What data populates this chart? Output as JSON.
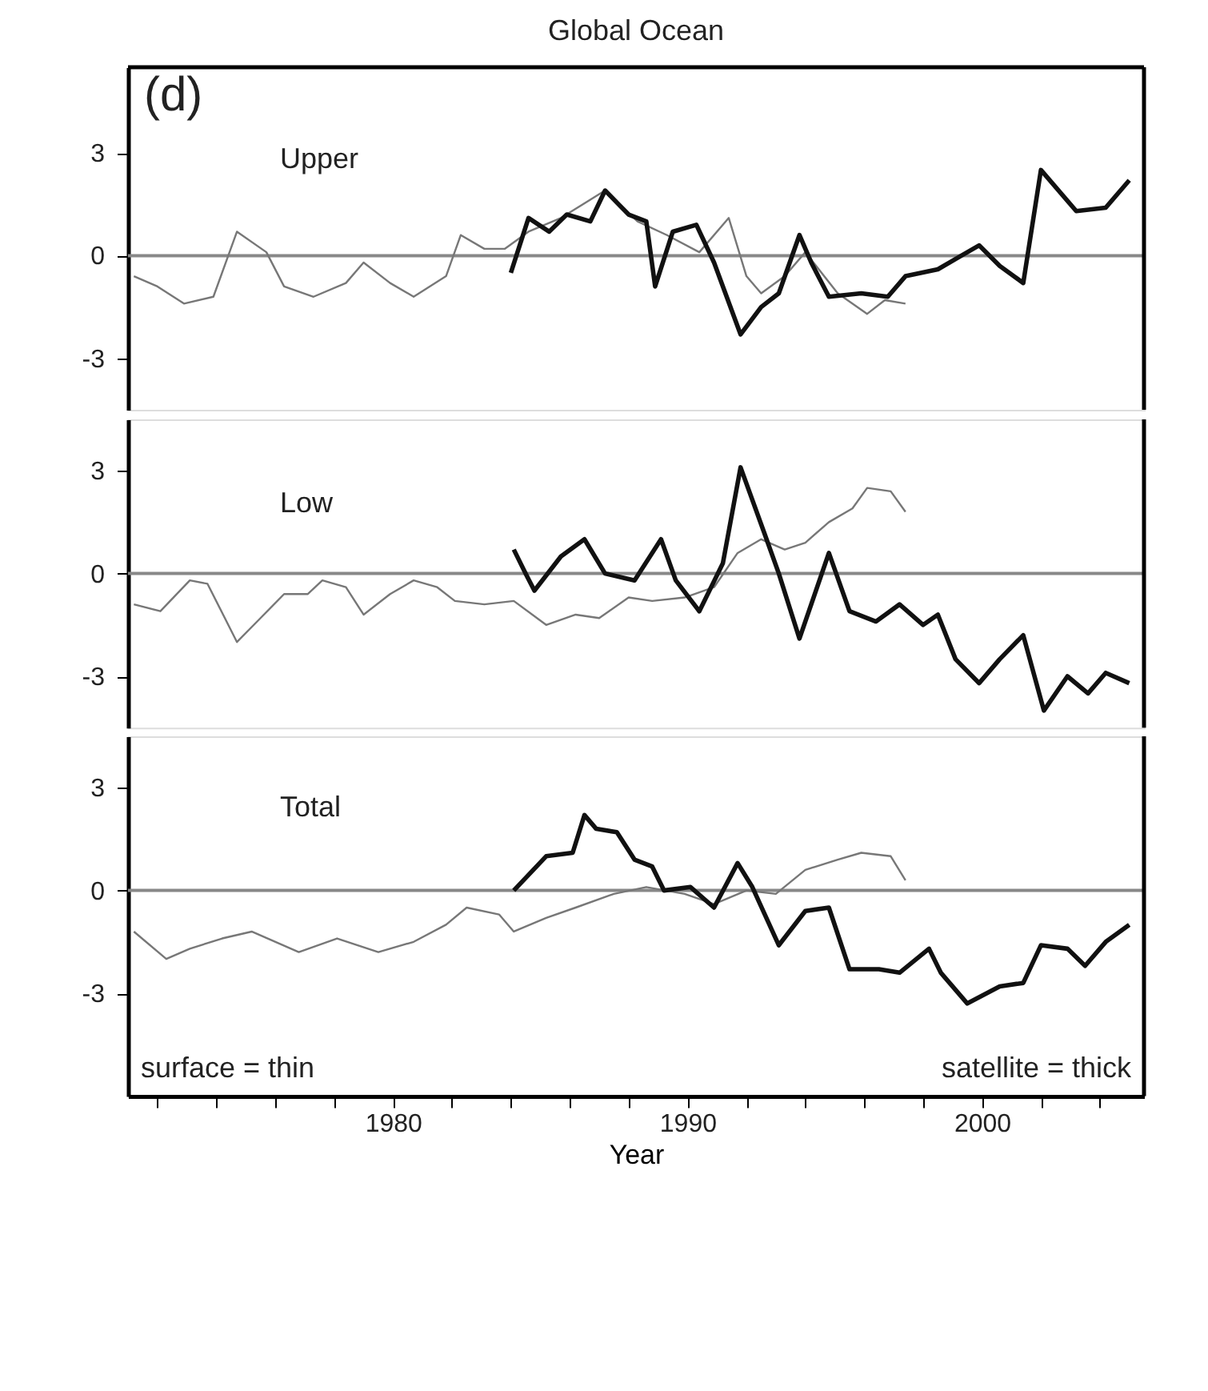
{
  "chart_data": [
    {
      "type": "line",
      "title": "Global Ocean",
      "annotations": [
        "(d)",
        "Upper"
      ],
      "xlim": [
        1971,
        2005.5
      ],
      "ylim": [
        -4.5,
        5.5
      ],
      "yticks": [
        -3,
        0,
        3
      ],
      "tick_labels": "y",
      "ref_lines": [
        {
          "axis": "y",
          "value": 0,
          "color": "#888888"
        }
      ],
      "series": [
        {
          "color": "#777777",
          "x": [
            1971.2,
            1972.0,
            1972.9,
            1973.9,
            1974.7,
            1975.7,
            1976.3,
            1977.3,
            1978.4,
            1979.0,
            1979.9,
            1980.7,
            1981.8,
            1982.3,
            1983.1,
            1983.8,
            1984.6,
            1985.7,
            1987.2,
            1988.3,
            1989.3,
            1990.4,
            1991.4,
            1992.0,
            1992.5,
            1993.3,
            1994.0,
            1995.1,
            1996.1,
            1996.7,
            1997.4
          ],
          "values": [
            -0.6,
            -0.9,
            -1.4,
            -1.2,
            0.7,
            0.1,
            -0.9,
            -1.2,
            -0.8,
            -0.2,
            -0.8,
            -1.2,
            -0.6,
            0.6,
            0.2,
            0.2,
            0.7,
            1.1,
            1.9,
            1.0,
            0.6,
            0.1,
            1.1,
            -0.6,
            -1.1,
            -0.6,
            0.1,
            -1.1,
            -1.7,
            -1.3,
            -1.4
          ]
        },
        {
          "color": "#111111",
          "x": [
            1984.0,
            1984.6,
            1985.3,
            1985.9,
            1986.7,
            1987.2,
            1988.0,
            1988.6,
            1988.9,
            1989.5,
            1990.3,
            1990.9,
            1991.8,
            1992.5,
            1993.1,
            1993.8,
            1994.2,
            1994.8,
            1995.9,
            1996.8,
            1997.4,
            1998.5,
            1999.3,
            1999.9,
            2000.6,
            2001.4,
            2002.0,
            2003.2,
            2004.2,
            2005.0
          ],
          "values": [
            -0.5,
            1.1,
            0.7,
            1.2,
            1.0,
            1.9,
            1.2,
            1.0,
            -0.9,
            0.7,
            0.9,
            -0.2,
            -2.3,
            -1.5,
            -1.1,
            0.6,
            -0.2,
            -1.2,
            -1.1,
            -1.2,
            -0.6,
            -0.4,
            0.0,
            0.3,
            -0.3,
            -0.8,
            2.5,
            1.3,
            1.4,
            2.2
          ]
        }
      ]
    },
    {
      "type": "line",
      "annotations": [
        "Low"
      ],
      "xlim": [
        1971,
        2005.5
      ],
      "ylim": [
        -4.5,
        4.5
      ],
      "yticks": [
        -3,
        0,
        3
      ],
      "tick_labels": "y",
      "ref_lines": [
        {
          "axis": "y",
          "value": 0,
          "color": "#888888"
        }
      ],
      "series": [
        {
          "color": "#777777",
          "x": [
            1971.2,
            1972.1,
            1973.1,
            1973.7,
            1974.7,
            1975.5,
            1976.3,
            1977.1,
            1977.6,
            1978.4,
            1979.0,
            1979.9,
            1980.7,
            1981.5,
            1982.1,
            1983.1,
            1984.1,
            1985.2,
            1986.2,
            1987.0,
            1988.0,
            1988.8,
            1989.9,
            1990.9,
            1991.7,
            1992.5,
            1993.3,
            1994.0,
            1994.8,
            1995.6,
            1996.1,
            1996.9,
            1997.4
          ],
          "values": [
            -0.9,
            -1.1,
            -0.2,
            -0.3,
            -2.0,
            -1.3,
            -0.6,
            -0.6,
            -0.2,
            -0.4,
            -1.2,
            -0.6,
            -0.2,
            -0.4,
            -0.8,
            -0.9,
            -0.8,
            -1.5,
            -1.2,
            -1.3,
            -0.7,
            -0.8,
            -0.7,
            -0.4,
            0.6,
            1.0,
            0.7,
            0.9,
            1.5,
            1.9,
            2.5,
            2.4,
            1.8
          ]
        },
        {
          "color": "#111111",
          "x": [
            1984.1,
            1984.5,
            1984.8,
            1985.7,
            1986.5,
            1987.2,
            1988.2,
            1989.1,
            1989.6,
            1990.4,
            1991.2,
            1991.8,
            1992.6,
            1993.1,
            1993.8,
            1994.8,
            1995.5,
            1996.4,
            1997.2,
            1998.0,
            1998.5,
            1999.1,
            1999.9,
            2000.6,
            2001.4,
            2002.1,
            2002.9,
            2003.6,
            2004.2,
            2005.0
          ],
          "values": [
            0.7,
            0.0,
            -0.5,
            0.5,
            1.0,
            0.0,
            -0.2,
            1.0,
            -0.2,
            -1.1,
            0.3,
            3.1,
            1.2,
            0.0,
            -1.9,
            0.6,
            -1.1,
            -1.4,
            -0.9,
            -1.5,
            -1.2,
            -2.5,
            -3.2,
            -2.5,
            -1.8,
            -4.0,
            -3.0,
            -3.5,
            -2.9,
            -3.2
          ]
        }
      ]
    },
    {
      "type": "line",
      "annotations": [
        "Total",
        "surface = thin",
        "satellite = thick"
      ],
      "xlabel": "Year",
      "xlim": [
        1971,
        2005.5
      ],
      "ylim": [
        -6,
        4.5
      ],
      "yticks": [
        -3,
        0,
        3
      ],
      "xticks": [
        {
          "value": 1972,
          "label": null
        },
        {
          "value": 1974,
          "label": null
        },
        {
          "value": 1976,
          "label": null
        },
        {
          "value": 1978,
          "label": null
        },
        1980,
        {
          "value": 1982,
          "label": null
        },
        {
          "value": 1984,
          "label": null
        },
        {
          "value": 1986,
          "label": null
        },
        {
          "value": 1988,
          "label": null
        },
        1990,
        {
          "value": 1992,
          "label": null
        },
        {
          "value": 1994,
          "label": null
        },
        {
          "value": 1996,
          "label": null
        },
        {
          "value": 1998,
          "label": null
        },
        2000,
        {
          "value": 2002,
          "label": null
        },
        {
          "value": 2004,
          "label": null
        }
      ],
      "ref_lines": [
        {
          "axis": "y",
          "value": 0,
          "color": "#888888"
        }
      ],
      "series": [
        {
          "color": "#777777",
          "x": [
            1971.2,
            1972.3,
            1973.1,
            1974.2,
            1975.2,
            1976.8,
            1978.1,
            1979.5,
            1980.7,
            1981.8,
            1982.5,
            1983.6,
            1984.1,
            1985.2,
            1986.2,
            1987.5,
            1988.6,
            1989.9,
            1990.9,
            1992.0,
            1993.0,
            1994.0,
            1995.1,
            1995.9,
            1996.9,
            1997.4
          ],
          "values": [
            -1.2,
            -2.0,
            -1.7,
            -1.4,
            -1.2,
            -1.8,
            -1.4,
            -1.8,
            -1.5,
            -1.0,
            -0.5,
            -0.7,
            -1.2,
            -0.8,
            -0.5,
            -0.1,
            0.1,
            -0.1,
            -0.4,
            0.0,
            -0.1,
            0.6,
            0.9,
            1.1,
            1.0,
            0.3
          ]
        },
        {
          "color": "#111111",
          "x": [
            1984.1,
            1985.2,
            1986.1,
            1986.5,
            1986.9,
            1987.6,
            1988.2,
            1988.8,
            1989.2,
            1990.1,
            1990.9,
            1991.7,
            1992.2,
            1993.1,
            1994.0,
            1994.8,
            1995.5,
            1996.5,
            1997.2,
            1998.2,
            1998.6,
            1999.5,
            2000.6,
            2001.4,
            2002.0,
            2002.9,
            2003.5,
            2004.2,
            2005.0
          ],
          "values": [
            0.0,
            1.0,
            1.1,
            2.2,
            1.8,
            1.7,
            0.9,
            0.7,
            0.0,
            0.1,
            -0.5,
            0.8,
            0.1,
            -1.6,
            -0.6,
            -0.5,
            -2.3,
            -2.3,
            -2.4,
            -1.7,
            -2.4,
            -3.3,
            -2.8,
            -2.7,
            -1.6,
            -1.7,
            -2.2,
            -1.5,
            -1.0
          ]
        }
      ]
    }
  ]
}
